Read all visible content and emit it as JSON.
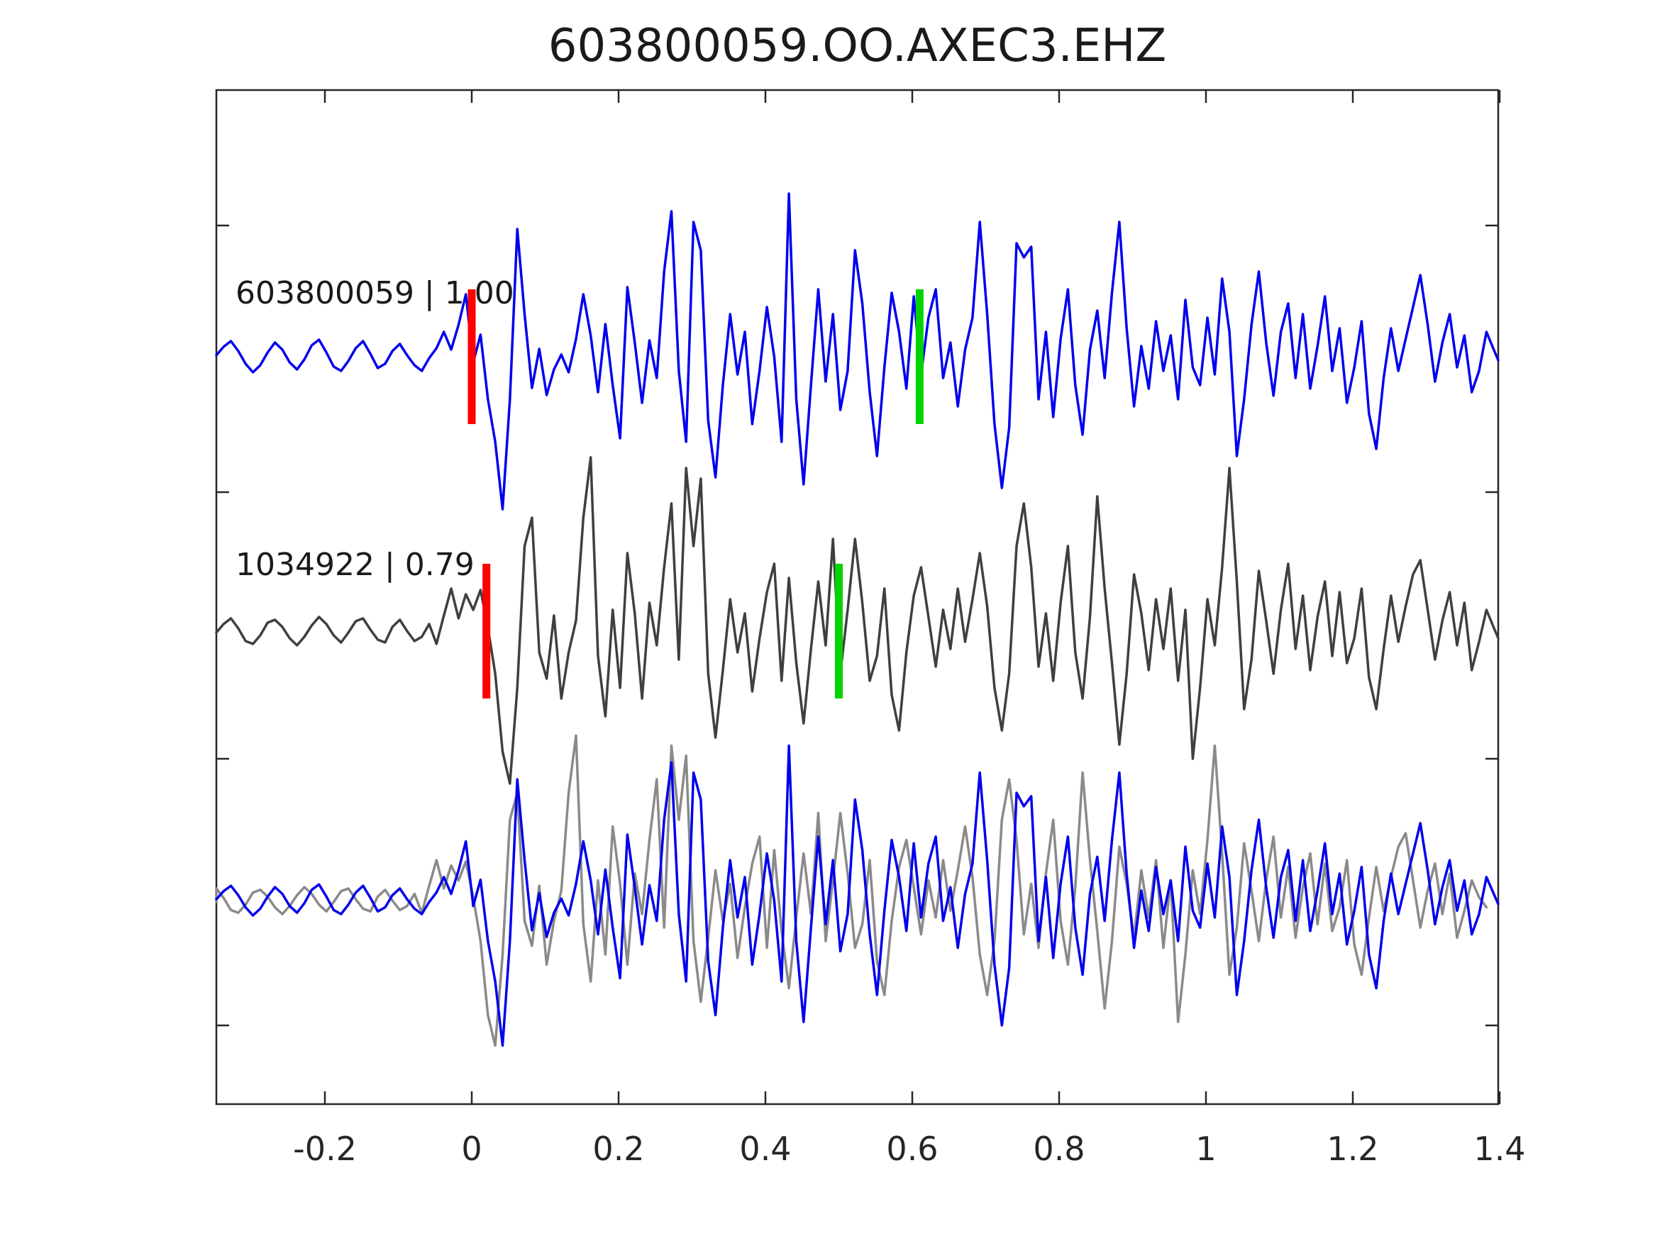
{
  "chart_data": {
    "type": "line",
    "title": "603800059.OO.AXEC3.EHZ",
    "xlabel": "",
    "ylabel": "",
    "xlim": [
      -0.348,
      1.4
    ],
    "x_ticks": [
      -0.2,
      0,
      0.2,
      0.4,
      0.6,
      0.8,
      1,
      1.2,
      1.4
    ],
    "x_tick_labels": [
      "-0.2",
      "0",
      "0.2",
      "0.4",
      "0.6",
      "0.8",
      "1",
      "1.2",
      "1.4"
    ],
    "grid": false,
    "legend": "none",
    "values_unit": "normalized amplitude (arbitrary units, 1 unit = 1 px)",
    "colors": {
      "template_blue": "#0000ee",
      "detection_gray": "#3f3f3f",
      "overlay_gray": "#8a8a8a",
      "pick_marker_red": "#ff0000",
      "marker_green": "#00d400",
      "axis": "#262626",
      "background": "#ffffff"
    },
    "traces": [
      {
        "name": "template",
        "id": "603800059",
        "correlation": 1.0,
        "label": "603800059 | 1.00",
        "color": "#0000ee",
        "red_marker_t": 0.0,
        "green_marker_t": 0.61,
        "t0": -0.348,
        "dt": 0.01,
        "values": [
          2,
          14,
          22,
          8,
          -10,
          -22,
          -12,
          6,
          20,
          10,
          -8,
          -18,
          -4,
          16,
          24,
          6,
          -14,
          -20,
          -6,
          12,
          22,
          4,
          -16,
          -10,
          8,
          18,
          2,
          -12,
          -20,
          -2,
          12,
          35,
          10,
          45,
          88,
          -8,
          31,
          -60,
          -120,
          -215,
          -60,
          180,
          60,
          -44,
          11,
          -54,
          -18,
          3,
          -22,
          25,
          88,
          30,
          -50,
          46,
          -40,
          -115,
          98,
          20,
          -65,
          23,
          -30,
          120,
          205,
          -20,
          -120,
          190,
          150,
          -90,
          -170,
          -40,
          60,
          -25,
          35,
          -95,
          -20,
          70,
          0,
          -120,
          230,
          -60,
          -180,
          -40,
          95,
          -35,
          60,
          -75,
          -20,
          150,
          75,
          -50,
          -140,
          -15,
          90,
          35,
          -45,
          85,
          -25,
          55,
          95,
          -30,
          20,
          -70,
          10,
          55,
          190,
          60,
          -95,
          -185,
          -100,
          160,
          140,
          155,
          -60,
          35,
          -85,
          25,
          95,
          -40,
          -110,
          10,
          65,
          -30,
          90,
          190,
          40,
          -70,
          15,
          -45,
          50,
          -20,
          30,
          -60,
          80,
          -15,
          -40,
          55,
          -25,
          110,
          35,
          -140,
          -60,
          45,
          120,
          20,
          -55,
          35,
          75,
          -30,
          60,
          -45,
          15,
          85,
          -20,
          40,
          -65,
          -15,
          50,
          -80,
          -130,
          -30,
          40,
          -20,
          25,
          70,
          115,
          45,
          -35,
          20,
          60,
          -15,
          30,
          -50,
          -20,
          35,
          10,
          -5
        ]
      },
      {
        "name": "detection",
        "id": "1034922",
        "correlation": 0.79,
        "label": "1034922 | 0.79",
        "color": "#3f3f3f",
        "red_marker_t": 0.02,
        "green_marker_t": 0.5,
        "t0": -0.348,
        "dt": 0.01,
        "values": [
          -2,
          10,
          18,
          4,
          -14,
          -18,
          -6,
          12,
          16,
          6,
          -10,
          -20,
          -8,
          8,
          20,
          10,
          -6,
          -16,
          -2,
          14,
          18,
          2,
          -12,
          -16,
          6,
          16,
          0,
          -14,
          -8,
          10,
          -18,
          22,
          60,
          18,
          52,
          30,
          58,
          5,
          -60,
          -170,
          -215,
          -80,
          120,
          160,
          -30,
          -67,
          22,
          -95,
          -30,
          15,
          160,
          245,
          -35,
          -120,
          30,
          -80,
          110,
          25,
          -95,
          40,
          -20,
          90,
          180,
          -40,
          230,
          120,
          215,
          -60,
          -150,
          -55,
          45,
          -30,
          25,
          -85,
          -10,
          55,
          95,
          -70,
          75,
          -45,
          -130,
          -25,
          70,
          -20,
          130,
          -60,
          30,
          130,
          40,
          -70,
          -35,
          60,
          -90,
          -140,
          -30,
          50,
          90,
          20,
          -50,
          30,
          -25,
          60,
          -15,
          45,
          110,
          35,
          -80,
          -140,
          -60,
          120,
          180,
          90,
          -50,
          25,
          -70,
          40,
          120,
          -30,
          -95,
          20,
          190,
          60,
          -45,
          -160,
          -60,
          80,
          25,
          -55,
          45,
          -25,
          60,
          -70,
          30,
          -180,
          -80,
          45,
          -20,
          90,
          230,
          70,
          -110,
          -40,
          85,
          15,
          -60,
          30,
          95,
          -25,
          50,
          -55,
          20,
          70,
          -35,
          55,
          -45,
          -10,
          60,
          -65,
          -110,
          -25,
          50,
          -15,
          35,
          80,
          100,
          30,
          -40,
          15,
          55,
          -20,
          40,
          -55,
          -15,
          30,
          5,
          -10
        ]
      },
      {
        "name": "overlay",
        "description": "aligned overlay: detection (gray, shifted) under template (blue)",
        "gray_color": "#8a8a8a",
        "blue_color": "#0000ee",
        "gray_shift_t": -0.02,
        "scale": 0.95
      }
    ]
  }
}
